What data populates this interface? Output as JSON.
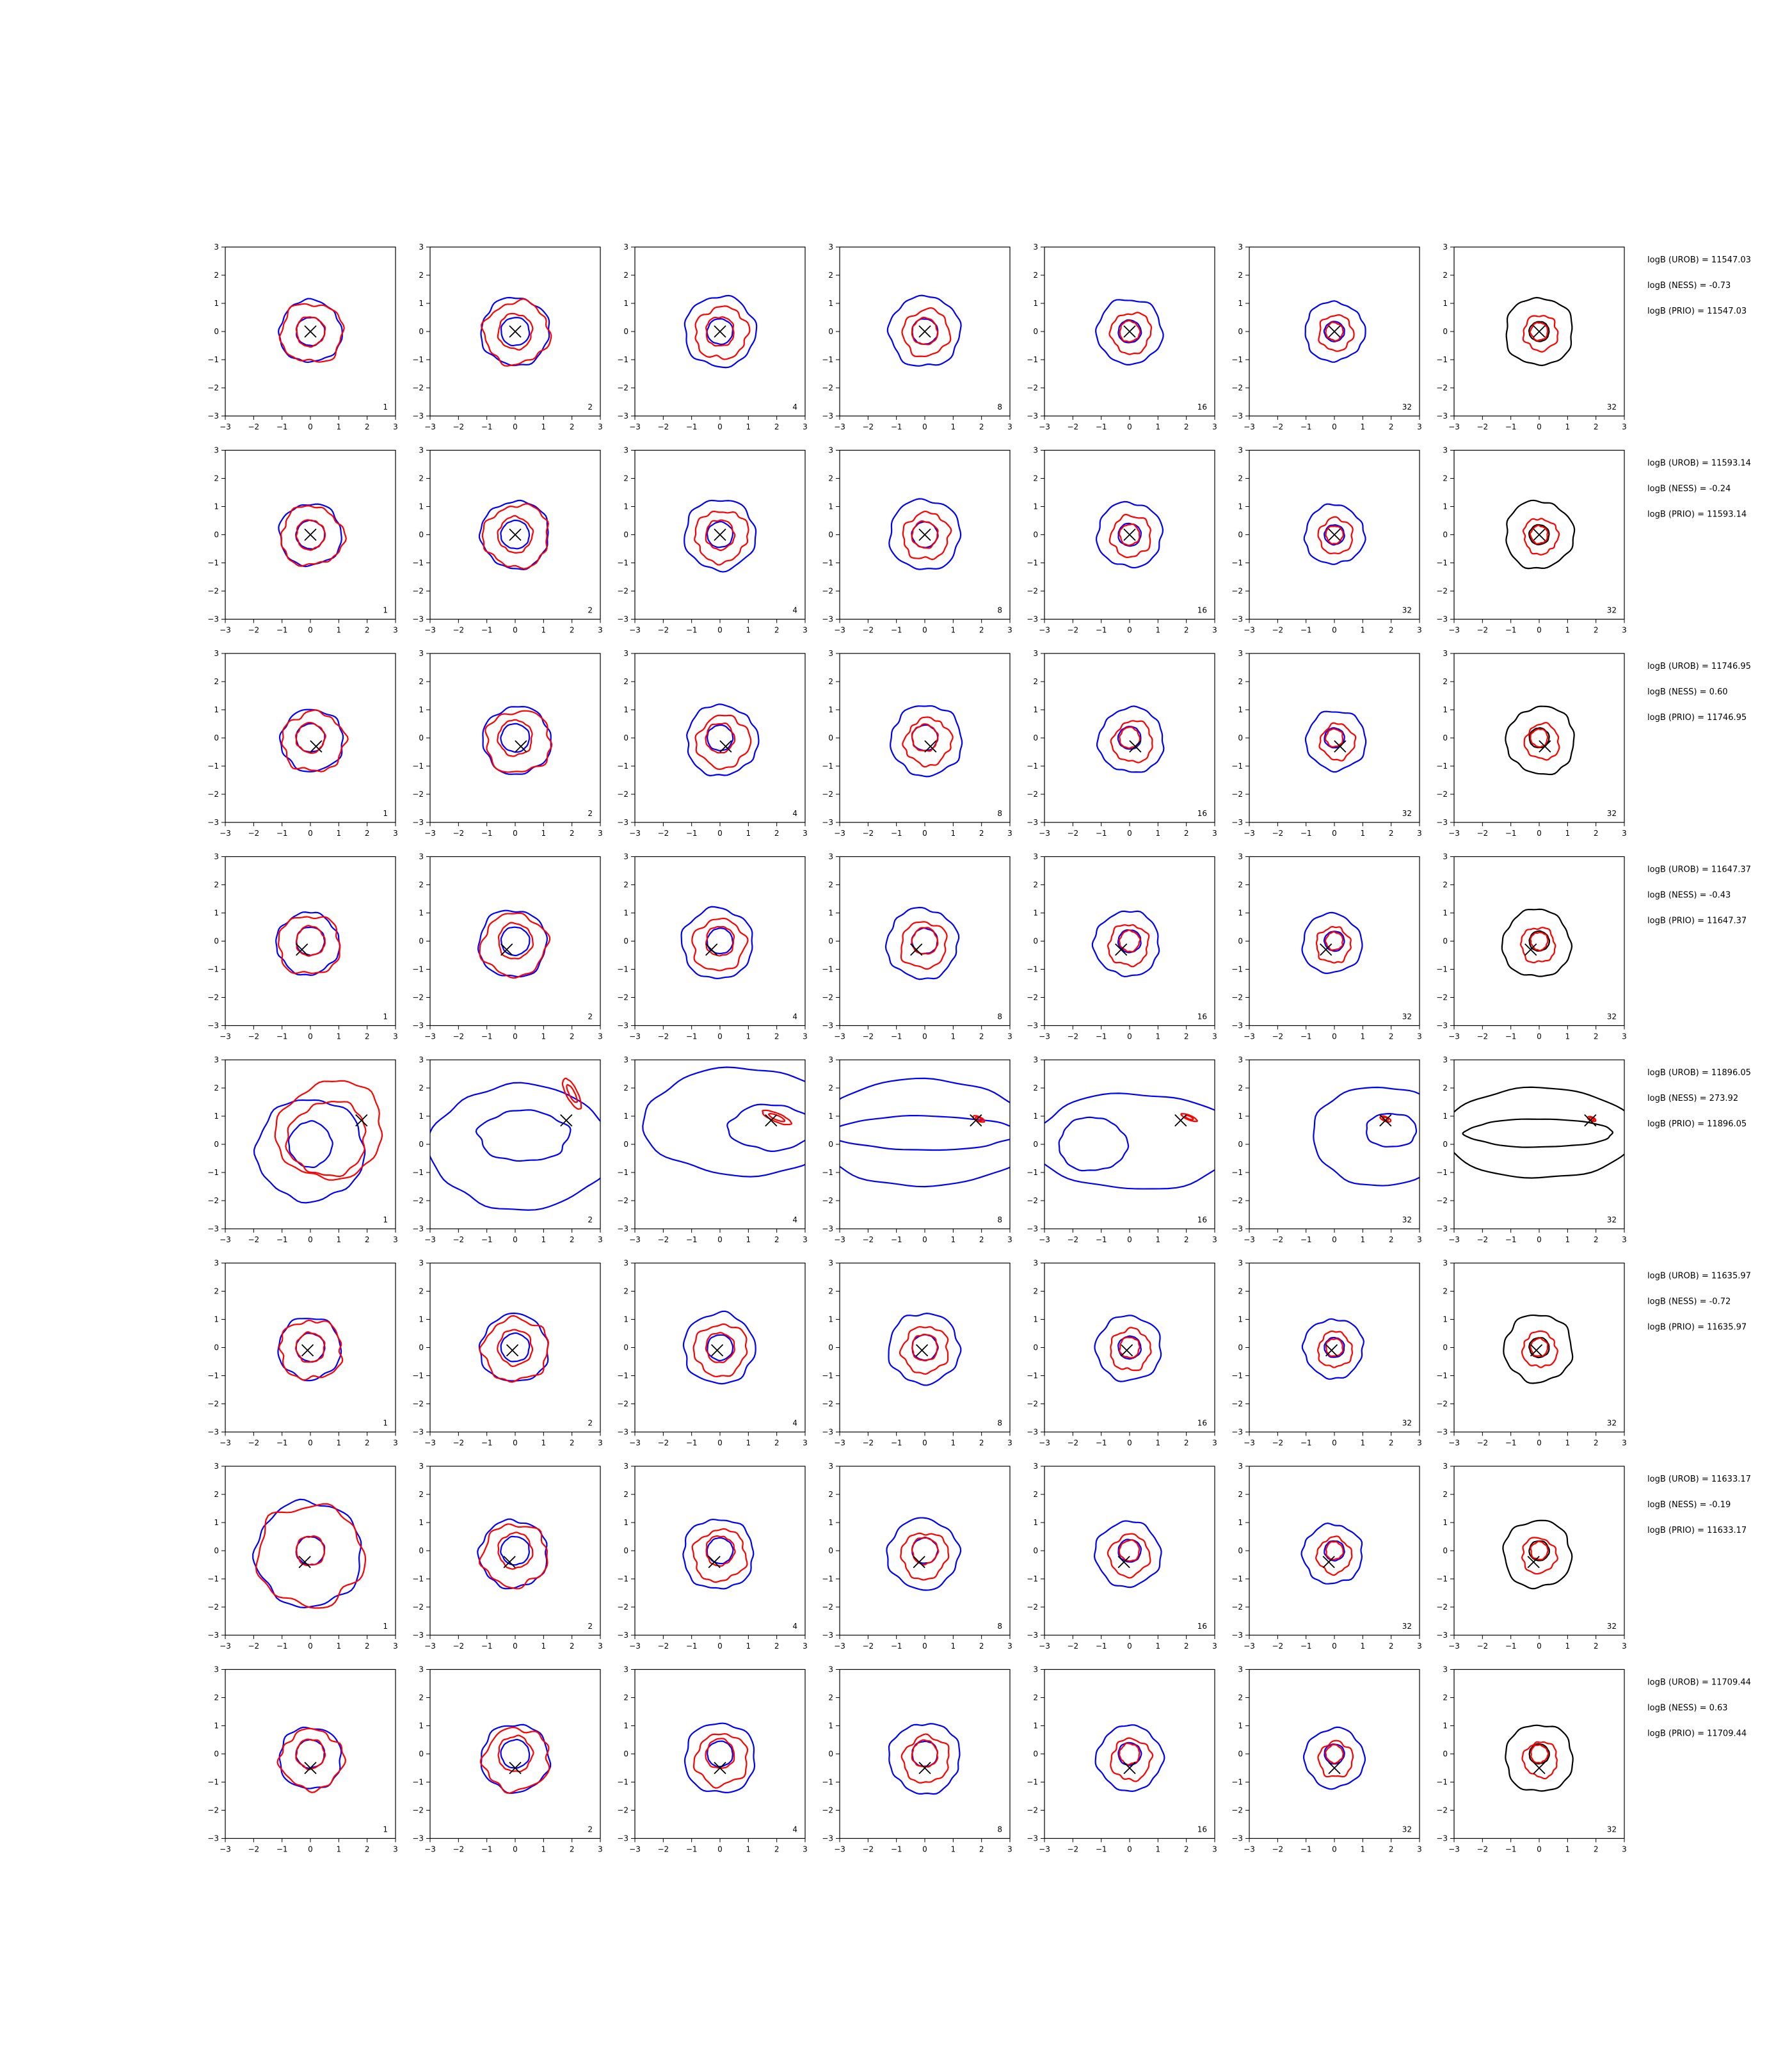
{
  "chart_data": {
    "type": "contour",
    "xlim": [
      -3,
      3
    ],
    "ylim": [
      -3,
      3
    ],
    "ticks": [
      "−3",
      "−2",
      "−1",
      "0",
      "1",
      "2",
      "3"
    ],
    "tick_values": [
      -3,
      -2,
      -1,
      0,
      1,
      2,
      3
    ],
    "colors": {
      "outer": "#0000ff",
      "inner": "#ff0000",
      "final": "#000000",
      "marker": "#000000"
    },
    "columns": [
      "1",
      "2",
      "4",
      "8",
      "16",
      "32",
      "32"
    ],
    "rows": [
      {
        "marker": [
          0,
          0
        ],
        "annotations": [
          "logB (UROB) = 11547.03",
          "logB (NESS) = -0.73",
          "logB (PRIO) = 11547.03"
        ]
      },
      {
        "marker": [
          0,
          0
        ],
        "annotations": [
          "logB (UROB) = 11593.14",
          "logB (NESS) = -0.24",
          "logB (PRIO) = 11593.14"
        ]
      },
      {
        "marker": [
          0.2,
          -0.3
        ],
        "annotations": [
          "logB (UROB) = 11746.95",
          "logB (NESS) = 0.60",
          "logB (PRIO) = 11746.95"
        ]
      },
      {
        "marker": [
          -0.3,
          -0.3
        ],
        "annotations": [
          "logB (UROB) = 11647.37",
          "logB (NESS) = -0.43",
          "logB (PRIO) = 11647.37"
        ]
      },
      {
        "marker": [
          1.8,
          0.85
        ],
        "annotations": [
          "logB (UROB) = 11896.05",
          "logB (NESS) = 273.92",
          "logB (PRIO) = 11896.05"
        ]
      },
      {
        "marker": [
          -0.1,
          -0.1
        ],
        "annotations": [
          "logB (UROB) = 11635.97",
          "logB (NESS) = -0.72",
          "logB (PRIO) = 11635.97"
        ]
      },
      {
        "marker": [
          -0.2,
          -0.4
        ],
        "annotations": [
          "logB (UROB) = 11633.17",
          "logB (NESS) = -0.19",
          "logB (PRIO) = 11633.17"
        ]
      },
      {
        "marker": [
          0,
          -0.5
        ],
        "annotations": [
          "logB (UROB) = 11709.44",
          "logB (NESS) = 0.63",
          "logB (PRIO) = 11709.44"
        ]
      }
    ]
  }
}
